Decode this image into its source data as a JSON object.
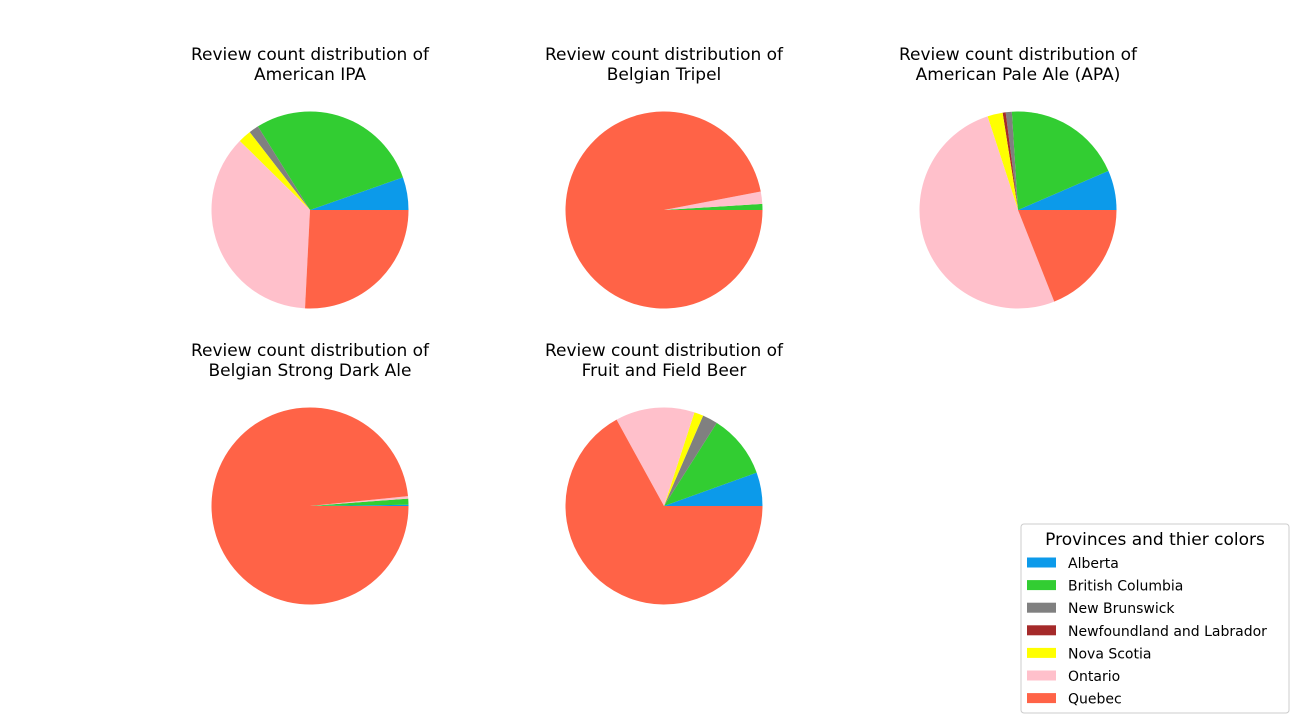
{
  "chart_data": [
    {
      "type": "pie",
      "title_line1": "Review count distribution of",
      "title_line2": "American IPA",
      "slices": [
        {
          "name": "Alberta",
          "value": 0.05
        },
        {
          "name": "British Columbia",
          "value": 0.265
        },
        {
          "name": "New Brunswick",
          "value": 0.015
        },
        {
          "name": "Nova Scotia",
          "value": 0.02
        },
        {
          "name": "Ontario",
          "value": 0.34
        },
        {
          "name": "Quebec",
          "value": 0.24
        }
      ]
    },
    {
      "type": "pie",
      "title_line1": "Review count distribution of",
      "title_line2": "Belgian Tripel",
      "slices": [
        {
          "name": "British Columbia",
          "value": 0.01
        },
        {
          "name": "Ontario",
          "value": 0.02
        },
        {
          "name": "Quebec",
          "value": 0.97
        }
      ]
    },
    {
      "type": "pie",
      "title_line1": "Review count distribution of",
      "title_line2": "American Pale Ale (APA)",
      "slices": [
        {
          "name": "Alberta",
          "value": 0.065
        },
        {
          "name": "British Columbia",
          "value": 0.195
        },
        {
          "name": "New Brunswick",
          "value": 0.01
        },
        {
          "name": "Newfoundland and Labrador",
          "value": 0.005
        },
        {
          "name": "Nova Scotia",
          "value": 0.025
        },
        {
          "name": "Ontario",
          "value": 0.51
        },
        {
          "name": "Quebec",
          "value": 0.19
        }
      ]
    },
    {
      "type": "pie",
      "title_line1": "Review count distribution of",
      "title_line2": "Belgian Strong Dark Ale",
      "slices": [
        {
          "name": "Alberta",
          "value": 0.002
        },
        {
          "name": "British Columbia",
          "value": 0.01
        },
        {
          "name": "Ontario",
          "value": 0.004
        },
        {
          "name": "Quebec",
          "value": 0.984
        }
      ]
    },
    {
      "type": "pie",
      "title_line1": "Review count distribution of",
      "title_line2": "Fruit and Field Beer",
      "slices": [
        {
          "name": "Alberta",
          "value": 0.055
        },
        {
          "name": "British Columbia",
          "value": 0.105
        },
        {
          "name": "New Brunswick",
          "value": 0.025
        },
        {
          "name": "Nova Scotia",
          "value": 0.015
        },
        {
          "name": "Ontario",
          "value": 0.13
        },
        {
          "name": "Quebec",
          "value": 0.67
        }
      ]
    }
  ],
  "legend": {
    "title": "Provinces and thier colors",
    "items": [
      {
        "name": "Alberta",
        "color": "#0c9aea"
      },
      {
        "name": "British Columbia",
        "color": "#32cd32"
      },
      {
        "name": "New Brunswick",
        "color": "#808080"
      },
      {
        "name": "Newfoundland and Labrador",
        "color": "#a52a2a"
      },
      {
        "name": "Nova Scotia",
        "color": "#ffff00"
      },
      {
        "name": "Ontario",
        "color": "#ffc0cb"
      },
      {
        "name": "Quebec",
        "color": "#ff6347"
      }
    ]
  }
}
